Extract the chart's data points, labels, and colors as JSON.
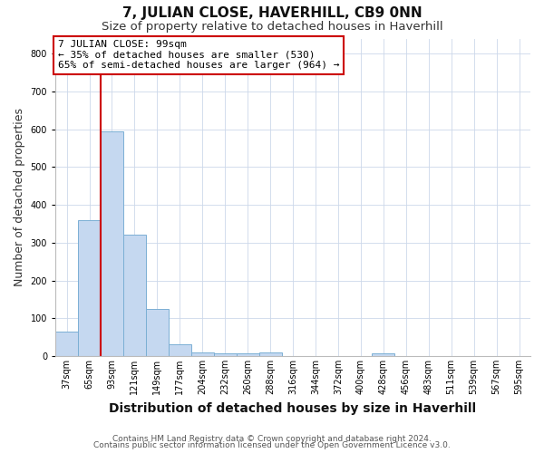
{
  "title": "7, JULIAN CLOSE, HAVERHILL, CB9 0NN",
  "subtitle": "Size of property relative to detached houses in Haverhill",
  "xlabel": "Distribution of detached houses by size in Haverhill",
  "ylabel": "Number of detached properties",
  "annotation_lines": [
    "7 JULIAN CLOSE: 99sqm",
    "← 35% of detached houses are smaller (530)",
    "65% of semi-detached houses are larger (964) →"
  ],
  "footnote1": "Contains HM Land Registry data © Crown copyright and database right 2024.",
  "footnote2": "Contains public sector information licensed under the Open Government Licence v3.0.",
  "bin_labels": [
    "37sqm",
    "65sqm",
    "93sqm",
    "121sqm",
    "149sqm",
    "177sqm",
    "204sqm",
    "232sqm",
    "260sqm",
    "288sqm",
    "316sqm",
    "344sqm",
    "372sqm",
    "400sqm",
    "428sqm",
    "456sqm",
    "483sqm",
    "511sqm",
    "539sqm",
    "567sqm",
    "595sqm"
  ],
  "bar_heights": [
    65,
    360,
    595,
    320,
    125,
    30,
    10,
    8,
    8,
    10,
    0,
    0,
    0,
    0,
    8,
    0,
    0,
    0,
    0,
    0,
    0
  ],
  "bar_color": "#c5d8f0",
  "bar_edgecolor": "#7bafd4",
  "red_line_x": 1.5,
  "red_line_color": "#cc0000",
  "ylim": [
    0,
    840
  ],
  "yticks": [
    0,
    100,
    200,
    300,
    400,
    500,
    600,
    700,
    800
  ],
  "background_color": "#ffffff",
  "grid_color": "#ccd8ea",
  "annotation_box_color": "#ffffff",
  "annotation_box_edgecolor": "#cc0000",
  "title_fontsize": 11,
  "subtitle_fontsize": 9.5,
  "axis_label_fontsize": 9,
  "tick_fontsize": 7,
  "annotation_fontsize": 8,
  "footnote_fontsize": 6.5
}
